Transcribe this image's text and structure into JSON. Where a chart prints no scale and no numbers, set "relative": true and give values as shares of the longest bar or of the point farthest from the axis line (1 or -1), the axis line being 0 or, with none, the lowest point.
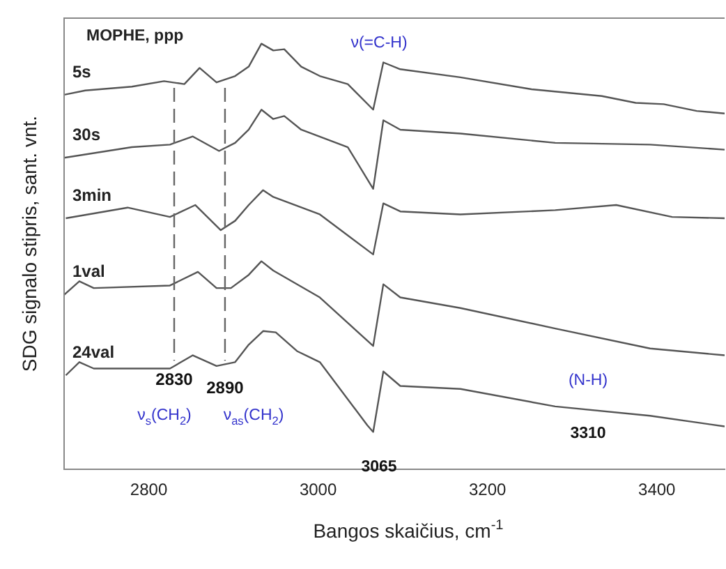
{
  "chart_data": {
    "type": "line",
    "relative": true,
    "xlabel": "Bangos skaičius, cm$^{-1}$",
    "ylabel": "SDG signalo stipris, sant. vnt.",
    "xlim": [
      2700,
      3480
    ],
    "xticks": [
      2800,
      3000,
      3200,
      3400
    ],
    "grid": false,
    "legend": false,
    "marker": "none",
    "line_style": "solid",
    "series": [
      {
        "name": "5s",
        "color": "#555555",
        "x": [
          2700,
          2725,
          2780,
          2818,
          2842,
          2860,
          2880,
          2902,
          2918,
          2933,
          2947,
          2960,
          2980,
          3002,
          3035,
          3065,
          3077,
          3097,
          3168,
          3252,
          3335,
          3375,
          3408,
          3447,
          3480
        ],
        "values": [
          0.88,
          0.89,
          0.899,
          0.912,
          0.905,
          0.943,
          0.909,
          0.924,
          0.946,
          1.0,
          0.984,
          0.987,
          0.946,
          0.924,
          0.905,
          0.845,
          0.956,
          0.94,
          0.921,
          0.893,
          0.877,
          0.861,
          0.858,
          0.842,
          0.836
        ]
      },
      {
        "name": "30s",
        "color": "#555555",
        "x": [
          2700,
          2780,
          2825,
          2852,
          2883,
          2902,
          2918,
          2933,
          2947,
          2960,
          2980,
          3035,
          3065,
          3077,
          3097,
          3168,
          3280,
          3392,
          3480
        ],
        "values": [
          0.732,
          0.757,
          0.763,
          0.782,
          0.748,
          0.767,
          0.798,
          0.845,
          0.823,
          0.83,
          0.798,
          0.757,
          0.659,
          0.82,
          0.798,
          0.789,
          0.767,
          0.763,
          0.751
        ]
      },
      {
        "name": "3min",
        "color": "#555555",
        "x": [
          2702,
          2775,
          2825,
          2855,
          2885,
          2902,
          2918,
          2935,
          2947,
          3002,
          3065,
          3077,
          3097,
          3168,
          3280,
          3352,
          3418,
          3480
        ],
        "values": [
          0.59,
          0.615,
          0.593,
          0.621,
          0.562,
          0.584,
          0.621,
          0.656,
          0.64,
          0.599,
          0.505,
          0.625,
          0.606,
          0.599,
          0.609,
          0.621,
          0.593,
          0.59
        ]
      },
      {
        "name": "1val",
        "color": "#555555",
        "x": [
          2700,
          2718,
          2735,
          2825,
          2858,
          2880,
          2897,
          2918,
          2933,
          2947,
          3002,
          3065,
          3077,
          3097,
          3168,
          3280,
          3392,
          3480
        ],
        "values": [
          0.41,
          0.442,
          0.426,
          0.432,
          0.464,
          0.426,
          0.426,
          0.457,
          0.489,
          0.467,
          0.404,
          0.29,
          0.435,
          0.404,
          0.379,
          0.331,
          0.284,
          0.268
        ]
      },
      {
        "name": "24val",
        "color": "#555555",
        "x": [
          2702,
          2718,
          2735,
          2825,
          2852,
          2880,
          2902,
          2918,
          2935,
          2950,
          2975,
          3002,
          3058,
          3065,
          3077,
          3097,
          3168,
          3280,
          3392,
          3480
        ],
        "values": [
          0.221,
          0.252,
          0.237,
          0.237,
          0.268,
          0.243,
          0.252,
          0.293,
          0.325,
          0.322,
          0.278,
          0.252,
          0.104,
          0.088,
          0.23,
          0.196,
          0.189,
          0.148,
          0.126,
          0.101
        ]
      }
    ],
    "ref_lines": [
      {
        "axis": "x",
        "value": 2830,
        "label": "2830",
        "color": "#666666",
        "line_style": "dashed"
      },
      {
        "axis": "x",
        "value": 2890,
        "label": "2890",
        "color": "#666666",
        "line_style": "dashed"
      }
    ],
    "annotations": [
      "MOPHE, ppp",
      "ν(=C-H)",
      "ν$_{s}$(CH$_{2}$)",
      "ν$_{as}$(CH$_{2}$)",
      "3065",
      "(N-H)",
      "3310"
    ]
  }
}
